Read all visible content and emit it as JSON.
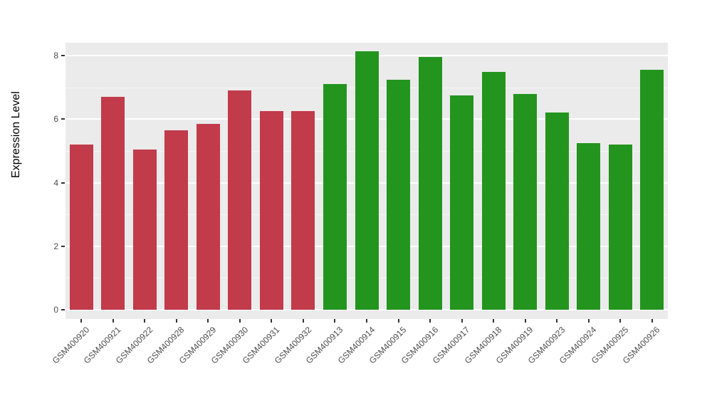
{
  "chart": {
    "page_background": "#FFFFFF",
    "panel_background": "#EBEBEB",
    "grid_color": "#FFFFFF"
  },
  "chart_data": {
    "type": "bar",
    "title": "",
    "xlabel": "",
    "ylabel": "Expression Level",
    "ylim": [
      0,
      8.4
    ],
    "yticks": [
      0,
      2,
      4,
      6,
      8
    ],
    "yticks_minor": [
      1,
      3,
      5,
      7
    ],
    "grid": "on",
    "legend_position": "none",
    "categories": [
      "GSM400920",
      "GSM400921",
      "GSM400922",
      "GSM400928",
      "GSM400929",
      "GSM400930",
      "GSM400931",
      "GSM400932",
      "GSM400913",
      "GSM400914",
      "GSM400915",
      "GSM400916",
      "GSM400917",
      "GSM400918",
      "GSM400919",
      "GSM400923",
      "GSM400924",
      "GSM400925",
      "GSM400926"
    ],
    "values": [
      5.2,
      6.7,
      5.05,
      5.65,
      5.85,
      6.9,
      6.25,
      6.25,
      7.1,
      8.15,
      7.25,
      7.95,
      6.75,
      7.5,
      6.8,
      6.2,
      5.25,
      5.2,
      7.55
    ],
    "groups": [
      "red",
      "red",
      "red",
      "red",
      "red",
      "red",
      "red",
      "red",
      "green",
      "green",
      "green",
      "green",
      "green",
      "green",
      "green",
      "green",
      "green",
      "green",
      "green"
    ],
    "palette": {
      "red": "#C13B4A",
      "green": "#23951F"
    }
  }
}
